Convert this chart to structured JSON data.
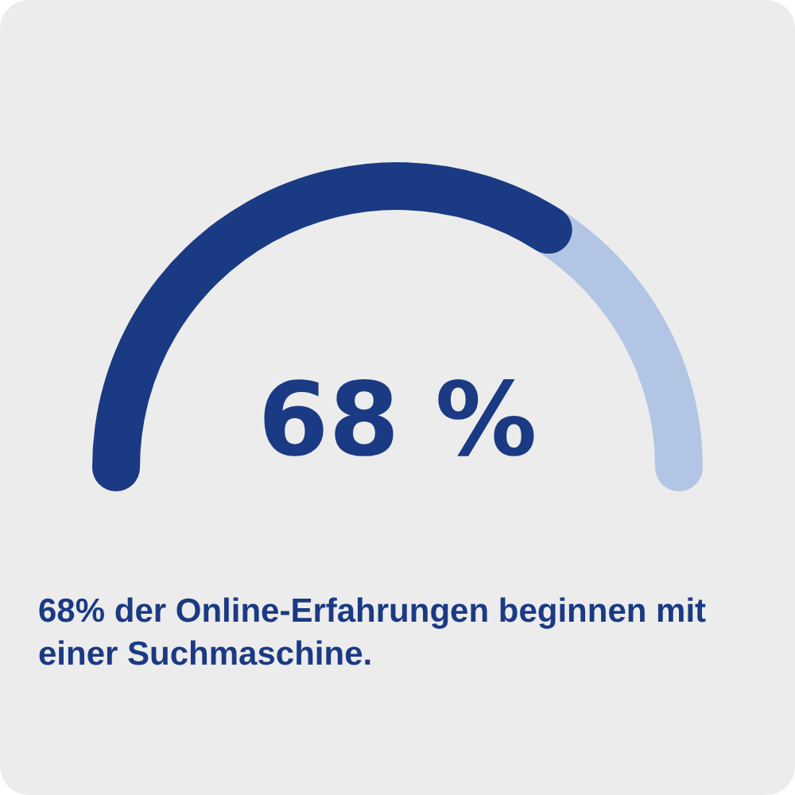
{
  "chart_data": {
    "type": "donut",
    "title": "68% der Online-Erfahrungen beginnen mit einer Suchmaschine.",
    "categories": [
      null,
      null
    ],
    "values": [
      68,
      32
    ],
    "colors": [
      "#1b3a84",
      "#b3c5e4"
    ],
    "annotations": [
      "68 %"
    ]
  }
}
